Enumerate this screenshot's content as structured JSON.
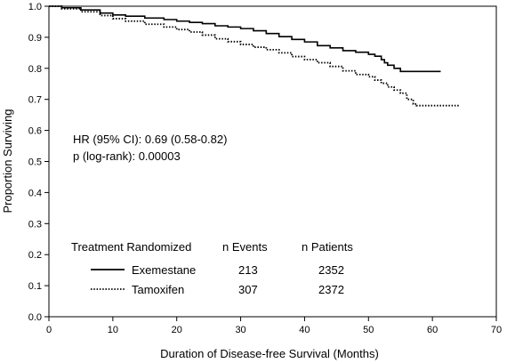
{
  "chart_data": {
    "type": "line",
    "title": "",
    "xlabel": "Duration of Disease-free Survival (Months)",
    "ylabel": "Proportion Surviving",
    "xlim": [
      0,
      70
    ],
    "ylim": [
      0.0,
      1.0
    ],
    "xticks": [
      0,
      10,
      20,
      30,
      40,
      50,
      60,
      70
    ],
    "yticks": [
      0.0,
      0.1,
      0.2,
      0.3,
      0.4,
      0.5,
      0.6,
      0.7,
      0.8,
      0.9,
      1.0
    ],
    "grid": false,
    "annotations": [
      "HR (95% CI): 0.69 (0.58-0.82)",
      "p (log-rank): 0.00003"
    ],
    "legend": {
      "placement": "bottom-left",
      "header": [
        "Treatment Randomized",
        "n Events",
        "n Patients"
      ],
      "rows": [
        {
          "name": "Exemestane",
          "events": "213",
          "patients": "2352"
        },
        {
          "name": "Tamoxifen",
          "events": "307",
          "patients": "2372"
        }
      ]
    },
    "series": [
      {
        "name": "Exemestane",
        "style": "solid",
        "color": "#000000",
        "points": [
          [
            0,
            1.0
          ],
          [
            2,
            0.995
          ],
          [
            5,
            0.988
          ],
          [
            8,
            0.978
          ],
          [
            10,
            0.972
          ],
          [
            12,
            0.968
          ],
          [
            15,
            0.962
          ],
          [
            18,
            0.957
          ],
          [
            20,
            0.952
          ],
          [
            22,
            0.948
          ],
          [
            24,
            0.944
          ],
          [
            26,
            0.937
          ],
          [
            28,
            0.933
          ],
          [
            30,
            0.928
          ],
          [
            32,
            0.921
          ],
          [
            34,
            0.912
          ],
          [
            36,
            0.902
          ],
          [
            38,
            0.893
          ],
          [
            40,
            0.885
          ],
          [
            42,
            0.873
          ],
          [
            44,
            0.866
          ],
          [
            46,
            0.857
          ],
          [
            48,
            0.852
          ],
          [
            50,
            0.845
          ],
          [
            51,
            0.839
          ],
          [
            52,
            0.828
          ],
          [
            52.5,
            0.818
          ],
          [
            53,
            0.81
          ],
          [
            54,
            0.8
          ],
          [
            55,
            0.79
          ],
          [
            61.3,
            0.79
          ]
        ]
      },
      {
        "name": "Tamoxifen",
        "style": "dotted",
        "color": "#000000",
        "points": [
          [
            0,
            1.0
          ],
          [
            2,
            0.992
          ],
          [
            5,
            0.982
          ],
          [
            8,
            0.97
          ],
          [
            10,
            0.96
          ],
          [
            12,
            0.952
          ],
          [
            15,
            0.942
          ],
          [
            18,
            0.933
          ],
          [
            20,
            0.925
          ],
          [
            22,
            0.917
          ],
          [
            24,
            0.907
          ],
          [
            26,
            0.895
          ],
          [
            28,
            0.886
          ],
          [
            30,
            0.877
          ],
          [
            32,
            0.868
          ],
          [
            34,
            0.86
          ],
          [
            36,
            0.85
          ],
          [
            38,
            0.838
          ],
          [
            40,
            0.828
          ],
          [
            42,
            0.818
          ],
          [
            44,
            0.806
          ],
          [
            46,
            0.792
          ],
          [
            48,
            0.78
          ],
          [
            50,
            0.773
          ],
          [
            51,
            0.762
          ],
          [
            52,
            0.752
          ],
          [
            53,
            0.74
          ],
          [
            54,
            0.73
          ],
          [
            55,
            0.72
          ],
          [
            56,
            0.7
          ],
          [
            57,
            0.685
          ],
          [
            57.5,
            0.68
          ],
          [
            64.3,
            0.68
          ]
        ]
      }
    ]
  }
}
